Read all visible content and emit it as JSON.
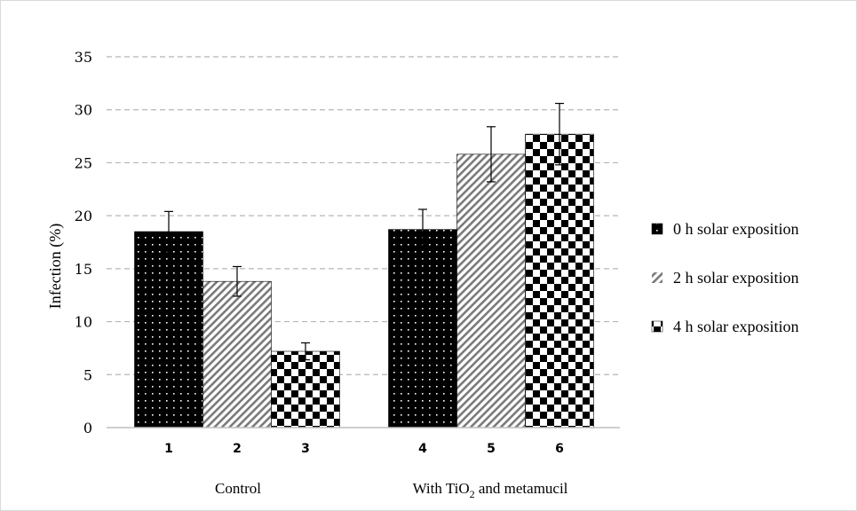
{
  "chart_data": {
    "type": "bar",
    "ylabel": "Infection (%)",
    "ylim": [
      0,
      35
    ],
    "yticks": [
      0,
      5,
      10,
      15,
      20,
      25,
      30,
      35
    ],
    "grid": true,
    "legend_position": "right",
    "groups": [
      {
        "label_main": "Control",
        "label_sub": "",
        "label_tail": ""
      },
      {
        "label_main": "With TiO",
        "label_sub": "2",
        "label_tail": " and metamucil"
      }
    ],
    "categories": [
      "1",
      "2",
      "3",
      "4",
      "5",
      "6"
    ],
    "series": [
      {
        "name": "0 h solar exposition",
        "pattern": "dots",
        "color": "#000000"
      },
      {
        "name": "2 h solar exposition",
        "pattern": "diagonal-stripes",
        "color": "#8c8c8c"
      },
      {
        "name": "4 h solar exposition",
        "pattern": "checkerboard",
        "color": "#000000"
      }
    ],
    "bars": [
      {
        "category": "1",
        "group": 0,
        "series": 0,
        "value": 18.5,
        "error": 1.9
      },
      {
        "category": "2",
        "group": 0,
        "series": 1,
        "value": 13.8,
        "error": 1.4
      },
      {
        "category": "3",
        "group": 0,
        "series": 2,
        "value": 7.2,
        "error": 0.8
      },
      {
        "category": "4",
        "group": 1,
        "series": 0,
        "value": 18.7,
        "error": 1.9
      },
      {
        "category": "5",
        "group": 1,
        "series": 1,
        "value": 25.8,
        "error": 2.6
      },
      {
        "category": "6",
        "group": 1,
        "series": 2,
        "value": 27.7,
        "error": 2.9
      }
    ]
  }
}
